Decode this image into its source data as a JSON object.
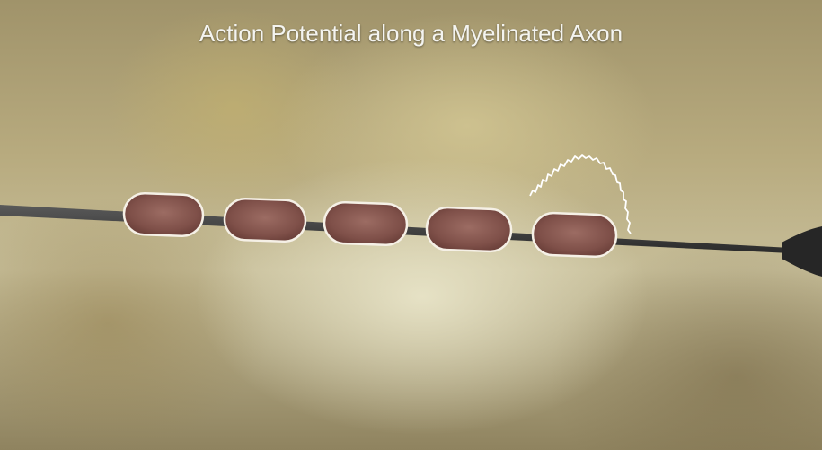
{
  "title": "Action Potential along a Myelinated Axon",
  "colors": {
    "axon": "#3c3c3c",
    "myelin_fill": "#8a5a52",
    "myelin_outline": "#f5f0e6",
    "signal_trace": "#ffffff"
  }
}
